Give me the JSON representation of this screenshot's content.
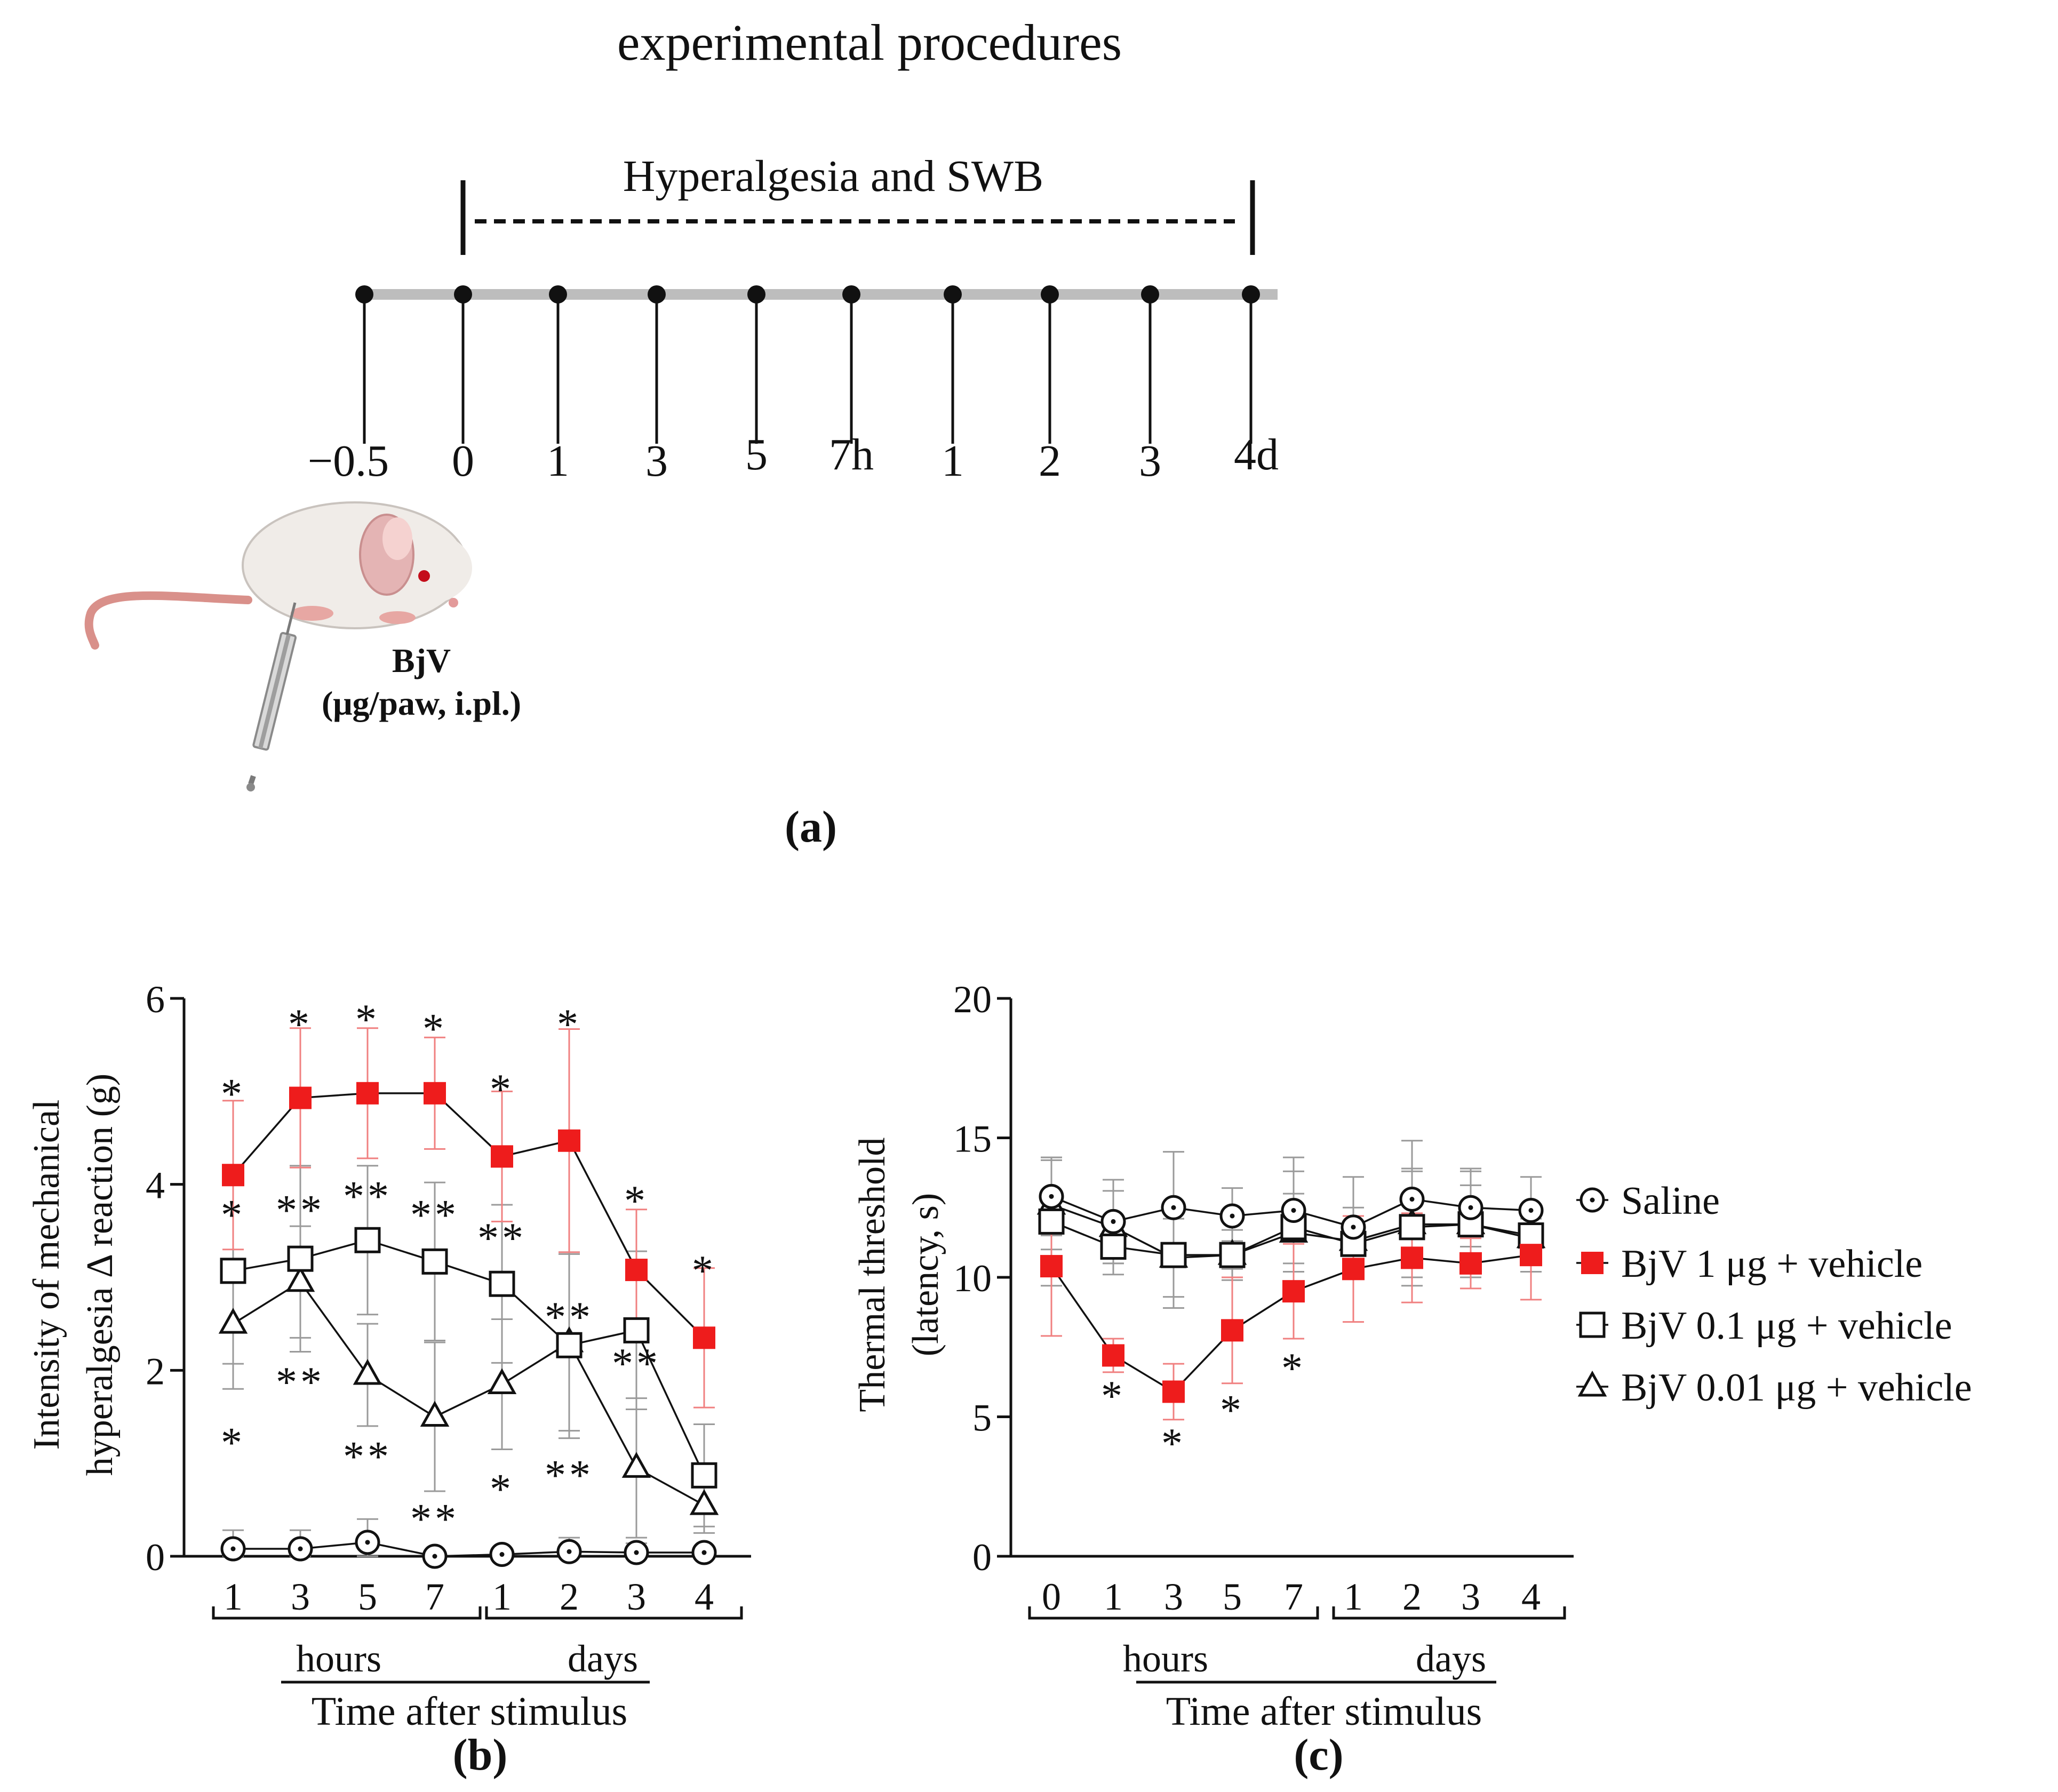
{
  "figure_title": "experimental procedures",
  "panel_labels": {
    "a": "(a)",
    "b": "(b)",
    "c": "(c)"
  },
  "timeline": {
    "phase_label": "Hyperalgesia and SWB",
    "ticks": [
      "−0.5",
      "0",
      "1",
      "3",
      "5",
      "7h",
      "1",
      "2",
      "3",
      "4d"
    ],
    "injection_line1": "BjV",
    "injection_line2": "(μg/paw, i.pl.)"
  },
  "colors": {
    "bjv_1": "#ee1c1c",
    "black": "#111111",
    "error_red": "#f08080",
    "error_gray": "#9a9a9a"
  },
  "legend": [
    {
      "label": "Saline",
      "marker": "circle-dot",
      "color": "#111111"
    },
    {
      "label": "BjV 1 μg + vehicle",
      "marker": "filled-square",
      "color": "#ee1c1c"
    },
    {
      "label": "BjV 0.1 μg + vehicle",
      "marker": "open-square",
      "color": "#111111"
    },
    {
      "label": "BjV 0.01 μg + vehicle",
      "marker": "open-triangle",
      "color": "#111111"
    }
  ],
  "chart_data": [
    {
      "panel": "b",
      "type": "line",
      "ylabel_line1": "Intensity of mechanical",
      "ylabel_line2": "hyperalgesia Δ reaction (g)",
      "xlabel": "Time after stimulus",
      "group_labels": [
        "hours",
        "days"
      ],
      "categories": [
        "1",
        "3",
        "5",
        "7",
        "1",
        "2",
        "3",
        "4"
      ],
      "ylim": [
        0,
        6
      ],
      "yticks": [
        "0",
        "2",
        "4",
        "6"
      ],
      "series": [
        {
          "name": "Saline",
          "marker": "circle-dot",
          "values": [
            0.08,
            0.08,
            0.15,
            0.0,
            0.02,
            0.05,
            0.04,
            0.04
          ],
          "err": [
            0.2,
            0.2,
            0.25,
            0.05,
            0.05,
            0.15,
            0.1,
            0.05
          ]
        },
        {
          "name": "BjV 1 μg + vehicle",
          "marker": "filled-square",
          "values": [
            4.1,
            4.93,
            4.98,
            4.98,
            4.3,
            4.47,
            3.08,
            2.35
          ],
          "err": [
            0.8,
            0.75,
            0.7,
            0.6,
            0.7,
            1.2,
            0.65,
            0.75
          ]
        },
        {
          "name": "BjV 0.1 μg + vehicle",
          "marker": "open-square",
          "values": [
            3.07,
            3.2,
            3.4,
            3.17,
            2.93,
            2.27,
            2.43,
            0.87
          ],
          "err": [
            1.0,
            1.0,
            0.8,
            0.85,
            0.85,
            1.0,
            0.85,
            0.55
          ]
        },
        {
          "name": "BjV 0.01 μg + vehicle",
          "marker": "open-triangle",
          "values": [
            2.5,
            2.95,
            1.95,
            1.5,
            1.85,
            2.3,
            0.95,
            0.55
          ],
          "err": [
            0.7,
            0.6,
            0.55,
            0.8,
            0.7,
            0.95,
            0.75,
            0.3
          ]
        }
      ],
      "annotations": [
        {
          "x": 0,
          "y": 5.05,
          "text": "*"
        },
        {
          "x": 0,
          "y": 3.75,
          "text": "*"
        },
        {
          "x": 0,
          "y": 1.3,
          "text": "*"
        },
        {
          "x": 1,
          "y": 5.8,
          "text": "*"
        },
        {
          "x": 1,
          "y": 3.8,
          "text": "**"
        },
        {
          "x": 1,
          "y": 1.95,
          "text": "**"
        },
        {
          "x": 2,
          "y": 5.85,
          "text": "*"
        },
        {
          "x": 2,
          "y": 3.95,
          "text": "**"
        },
        {
          "x": 2,
          "y": 1.15,
          "text": "**"
        },
        {
          "x": 3,
          "y": 5.75,
          "text": "*"
        },
        {
          "x": 3,
          "y": 3.75,
          "text": "**"
        },
        {
          "x": 3,
          "y": 0.48,
          "text": "**"
        },
        {
          "x": 4,
          "y": 5.1,
          "text": "*"
        },
        {
          "x": 4,
          "y": 3.5,
          "text": "**"
        },
        {
          "x": 4,
          "y": 0.8,
          "text": "*"
        },
        {
          "x": 5,
          "y": 5.8,
          "text": "*"
        },
        {
          "x": 5,
          "y": 2.65,
          "text": "**"
        },
        {
          "x": 5,
          "y": 0.95,
          "text": "**"
        },
        {
          "x": 6,
          "y": 3.9,
          "text": "*"
        },
        {
          "x": 6,
          "y": 2.15,
          "text": "**"
        },
        {
          "x": 7,
          "y": 3.15,
          "text": "*"
        }
      ]
    },
    {
      "panel": "c",
      "type": "line",
      "ylabel_line1": "Thermal threshold",
      "ylabel_line2": "(latency, s)",
      "xlabel": "Time after stimulus",
      "group_labels": [
        "hours",
        "days"
      ],
      "categories": [
        "0",
        "1",
        "3",
        "5",
        "7",
        "1",
        "2",
        "3",
        "4"
      ],
      "ylim": [
        0,
        20
      ],
      "yticks": [
        "0",
        "5",
        "10",
        "15",
        "20"
      ],
      "series": [
        {
          "name": "Saline",
          "marker": "circle-dot",
          "values": [
            12.9,
            12.0,
            12.5,
            12.2,
            12.4,
            11.8,
            12.8,
            12.5,
            12.4
          ],
          "err": [
            1.4,
            1.5,
            2.0,
            1.0,
            1.9,
            1.8,
            2.1,
            1.4,
            1.2
          ]
        },
        {
          "name": "BjV 1 μg + vehicle",
          "marker": "filled-square",
          "values": [
            10.4,
            7.2,
            5.9,
            8.1,
            9.5,
            10.3,
            10.7,
            10.5,
            10.8
          ],
          "err": [
            2.5,
            0.6,
            1.0,
            1.9,
            1.7,
            1.9,
            1.6,
            0.9,
            1.6
          ]
        },
        {
          "name": "BjV 0.1 μg + vehicle",
          "marker": "open-square",
          "values": [
            12.0,
            11.1,
            10.8,
            10.8,
            11.8,
            11.2,
            11.8,
            11.9,
            11.5
          ],
          "err": [
            2.3,
            1.0,
            1.9,
            0.9,
            2.0,
            1.0,
            2.1,
            1.9,
            0.6
          ]
        },
        {
          "name": "BjV 0.01 μg + vehicle",
          "marker": "open-triangle",
          "values": [
            12.6,
            11.8,
            10.7,
            10.8,
            11.6,
            11.3,
            11.9,
            11.9,
            11.4
          ],
          "err": [
            1.6,
            1.3,
            1.4,
            0.5,
            1.4,
            1.2,
            1.9,
            1.4,
            1.2
          ]
        }
      ],
      "annotations": [
        {
          "x": 1,
          "y": 6.0,
          "text": "*"
        },
        {
          "x": 2,
          "y": 4.3,
          "text": "*"
        },
        {
          "x": 3,
          "y": 5.5,
          "text": "*"
        },
        {
          "x": 4,
          "y": 7.0,
          "text": "*"
        }
      ]
    }
  ]
}
